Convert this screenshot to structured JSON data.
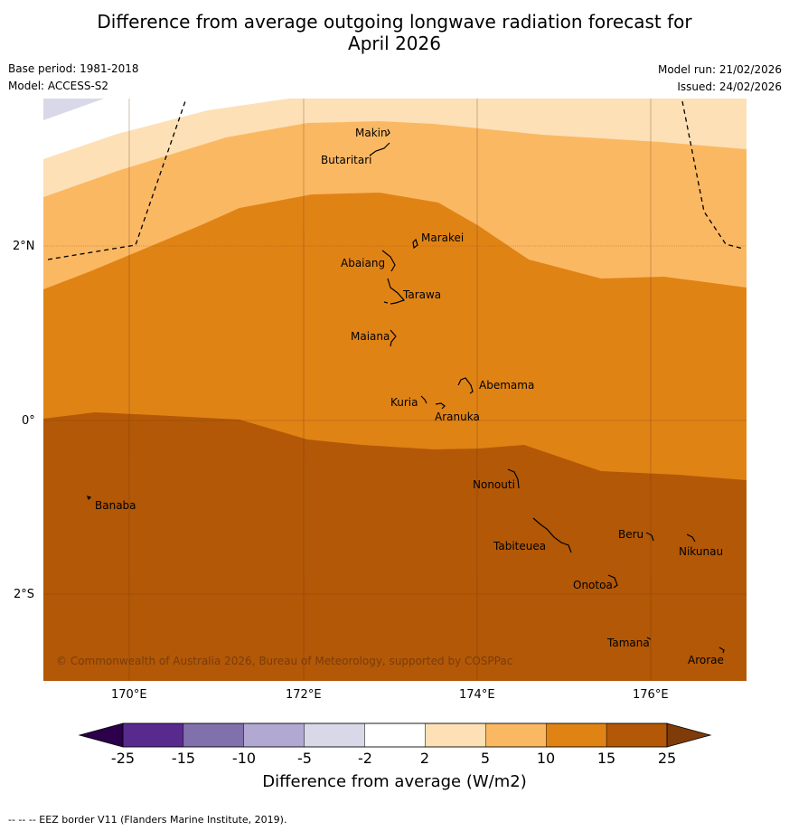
{
  "title_line1": "Difference from average outgoing longwave radiation forecast for",
  "title_line2": "April 2026",
  "base_period": "Base period: 1981-2018",
  "model": "Model: ACCESS-S2",
  "model_run": "Model run: 21/02/2026",
  "issued": "Issued: 24/02/2026",
  "map": {
    "lon_labels": [
      "170°E",
      "172°E",
      "174°E",
      "176°E"
    ],
    "lat_labels": [
      "2°N",
      "0°",
      "2°S"
    ],
    "places": [
      "Makin",
      "Butaritari",
      "Marakei",
      "Abaiang",
      "Tarawa",
      "Maiana",
      "Abemama",
      "Kuria",
      "Aranuka",
      "Nonouti",
      "Banaba",
      "Beru",
      "Nikunau",
      "Tabiteuea",
      "Onotoa",
      "Tamana",
      "Arorae"
    ],
    "copyright": "© Commonwealth of Australia 2026, Bureau of Meteorology, supported by COSPPac"
  },
  "colorbar": {
    "ticks": [
      "-25",
      "-15",
      "-10",
      "-5",
      "-2",
      "2",
      "5",
      "10",
      "15",
      "25"
    ],
    "colors": [
      "#582a8e",
      "#8070ac",
      "#b1a9d1",
      "#d9d8e9",
      "#ffffff",
      "#fde0b6",
      "#fbb863",
      "#e08315",
      "#b35806"
    ],
    "under_color": "#2d004b",
    "over_color": "#7f3b08",
    "label": "Difference from average (W/m2)"
  },
  "footnote": "--  --  -- EEZ border V11 (Flanders Marine Institute, 2019)."
}
